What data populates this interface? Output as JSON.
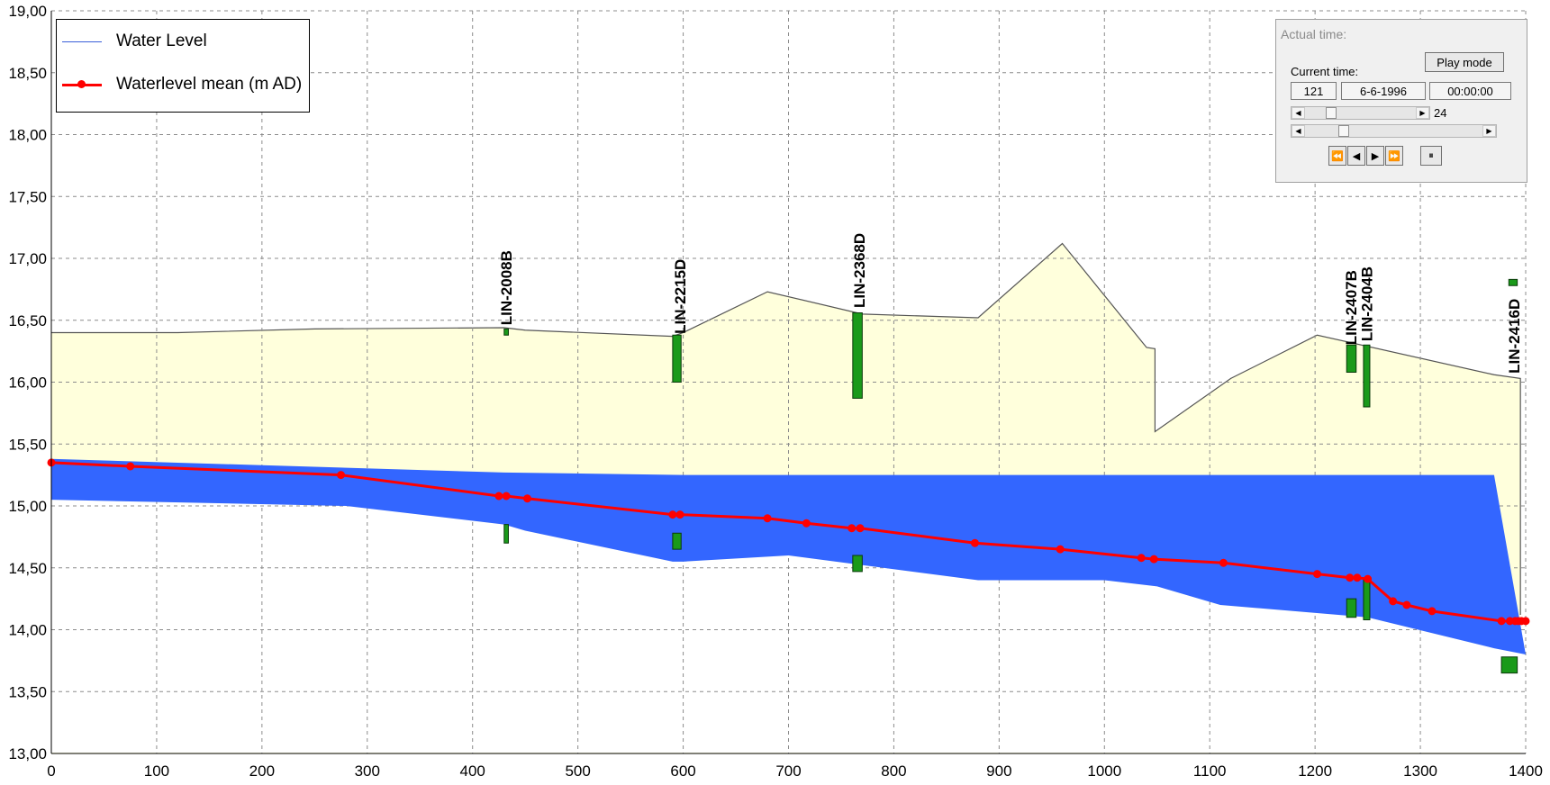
{
  "chart_data": {
    "type": "area",
    "title": "",
    "xlabel": "",
    "ylabel": "",
    "xlim": [
      0,
      1400
    ],
    "ylim": [
      13.0,
      19.0
    ],
    "x_ticks": [
      "0",
      "100",
      "200",
      "300",
      "400",
      "500",
      "600",
      "700",
      "800",
      "900",
      "1000",
      "1100",
      "1200",
      "1300",
      "1400"
    ],
    "y_ticks": [
      "13,00",
      "13,50",
      "14,00",
      "14,50",
      "15,00",
      "15,50",
      "16,00",
      "16,50",
      "17,00",
      "17,50",
      "18,00",
      "18,50",
      "19,00"
    ],
    "grid": true,
    "legend_position": "top-left",
    "series": [
      {
        "name": "Water Level",
        "color": "#3366ff",
        "top": [
          [
            0,
            15.38
          ],
          [
            430,
            15.27
          ],
          [
            600,
            15.25
          ],
          [
            1000,
            15.25
          ],
          [
            1370,
            15.25
          ]
        ],
        "bottom": [
          [
            0,
            15.05
          ],
          [
            280,
            15.0
          ],
          [
            430,
            14.85
          ],
          [
            450,
            14.8
          ],
          [
            590,
            14.55
          ],
          [
            600,
            14.55
          ],
          [
            700,
            14.6
          ],
          [
            880,
            14.4
          ],
          [
            1000,
            14.4
          ],
          [
            1050,
            14.35
          ],
          [
            1110,
            14.2
          ],
          [
            1250,
            14.1
          ],
          [
            1370,
            13.85
          ],
          [
            1400,
            13.8
          ]
        ]
      },
      {
        "name": "Waterlevel mean (m AD)",
        "color": "#ff0000",
        "points": [
          [
            0,
            15.35
          ],
          [
            75,
            15.32
          ],
          [
            275,
            15.25
          ],
          [
            425,
            15.08
          ],
          [
            432,
            15.08
          ],
          [
            452,
            15.06
          ],
          [
            590,
            14.93
          ],
          [
            597,
            14.93
          ],
          [
            680,
            14.9
          ],
          [
            717,
            14.86
          ],
          [
            760,
            14.82
          ],
          [
            768,
            14.82
          ],
          [
            877,
            14.7
          ],
          [
            958,
            14.65
          ],
          [
            1035,
            14.58
          ],
          [
            1047,
            14.57
          ],
          [
            1113,
            14.54
          ],
          [
            1202,
            14.45
          ],
          [
            1233,
            14.42
          ],
          [
            1240,
            14.42
          ],
          [
            1250,
            14.41
          ],
          [
            1274,
            14.23
          ],
          [
            1287,
            14.2
          ],
          [
            1311,
            14.15
          ],
          [
            1377,
            14.07
          ],
          [
            1385,
            14.07
          ],
          [
            1390,
            14.07
          ],
          [
            1393,
            14.07
          ],
          [
            1396,
            14.07
          ],
          [
            1400,
            14.07
          ]
        ]
      }
    ],
    "ground_profile": [
      [
        0,
        16.4
      ],
      [
        120,
        16.4
      ],
      [
        250,
        16.43
      ],
      [
        430,
        16.44
      ],
      [
        450,
        16.42
      ],
      [
        590,
        16.37
      ],
      [
        600,
        16.4
      ],
      [
        680,
        16.73
      ],
      [
        770,
        16.55
      ],
      [
        880,
        16.52
      ],
      [
        960,
        17.12
      ],
      [
        1040,
        16.28
      ],
      [
        1048,
        16.27
      ],
      [
        1048,
        15.6
      ],
      [
        1120,
        16.03
      ],
      [
        1202,
        16.38
      ],
      [
        1370,
        16.06
      ],
      [
        1395,
        16.03
      ],
      [
        1395,
        14.12
      ]
    ],
    "structures": [
      {
        "name": "LIN-2008B",
        "label_x": 432,
        "label_y": 16.46,
        "boxes": [
          [
            430,
            434,
            16.38,
            16.43
          ],
          [
            430,
            434,
            14.7,
            14.85
          ]
        ]
      },
      {
        "name": "LIN-2215D",
        "label_x": 597,
        "label_y": 16.39,
        "boxes": [
          [
            590,
            598,
            16.0,
            16.38
          ],
          [
            590,
            598,
            14.65,
            14.78
          ]
        ]
      },
      {
        "name": "LIN-2368D",
        "label_x": 767,
        "label_y": 16.6,
        "boxes": [
          [
            761,
            770,
            15.87,
            16.56
          ],
          [
            761,
            770,
            14.47,
            14.6
          ]
        ]
      },
      {
        "name": "LIN-2407B",
        "label_x": 1234,
        "label_y": 16.3,
        "boxes": [
          [
            1230,
            1239,
            16.08,
            16.3
          ],
          [
            1230,
            1239,
            14.1,
            14.25
          ]
        ]
      },
      {
        "name": "LIN-2404B",
        "label_x": 1249,
        "label_y": 16.33,
        "boxes": [
          [
            1246,
            1252,
            15.8,
            16.3
          ],
          [
            1246,
            1252,
            14.08,
            14.4
          ]
        ]
      },
      {
        "name": "LIN-2416D",
        "label_x": 1389,
        "label_y": 16.07,
        "boxes": [
          [
            1384,
            1392,
            16.78,
            16.83
          ],
          [
            1377,
            1392,
            13.65,
            13.78
          ]
        ]
      }
    ]
  },
  "legend": {
    "items": [
      {
        "label": "Water Level"
      },
      {
        "label": "Waterlevel mean (m AD)"
      }
    ]
  },
  "time_panel": {
    "title": "Actual time:",
    "play_mode_label": "Play mode",
    "current_time_label": "Current time:",
    "step": "121",
    "date": "6-6-1996",
    "clock": "00:00:00",
    "speed_value": "24",
    "speed_slider_fraction": 0.2,
    "time_slider_fraction": 0.2,
    "nav": [
      "⏪",
      "◀",
      "▶",
      "⏩"
    ],
    "pause_glyph": "⏸"
  }
}
